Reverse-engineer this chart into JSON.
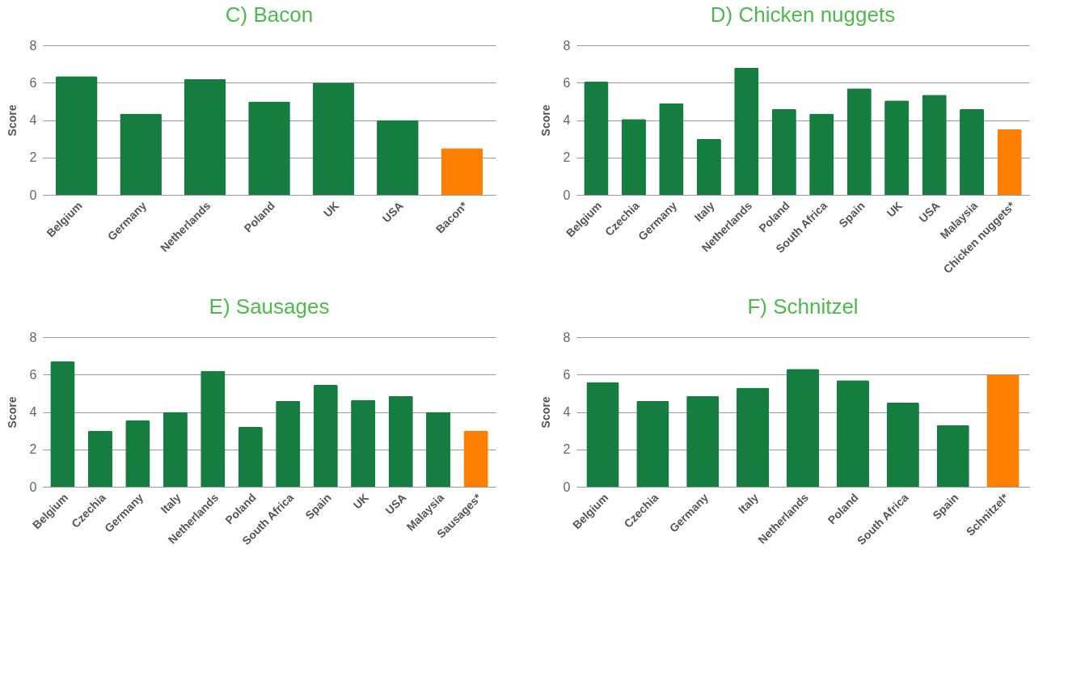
{
  "chart_data": [
    {
      "type": "bar",
      "title": "C) Bacon",
      "ylabel": "Score",
      "categories": [
        "Belgium",
        "Germany",
        "Netherlands",
        "Poland",
        "UK",
        "USA",
        "Bacon*"
      ],
      "values": [
        6.35,
        4.35,
        6.2,
        5.0,
        6.0,
        4.0,
        2.5
      ],
      "colors": [
        "#167d40",
        "#167d40",
        "#167d40",
        "#167d40",
        "#167d40",
        "#167d40",
        "#ff8000"
      ],
      "ylim": [
        0,
        8
      ],
      "yticks": [
        0,
        2,
        4,
        6,
        8
      ],
      "grid": "y"
    },
    {
      "type": "bar",
      "title": "D) Chicken nuggets",
      "ylabel": "Score",
      "categories": [
        "Belgium",
        "Czechia",
        "Germany",
        "Italy",
        "Netherlands",
        "Poland",
        "South Africa",
        "Spain",
        "UK",
        "USA",
        "Malaysia",
        "Chicken nuggets*"
      ],
      "values": [
        6.05,
        4.05,
        4.9,
        3.0,
        6.8,
        4.6,
        4.35,
        5.7,
        5.05,
        5.35,
        4.6,
        3.5
      ],
      "colors": [
        "#167d40",
        "#167d40",
        "#167d40",
        "#167d40",
        "#167d40",
        "#167d40",
        "#167d40",
        "#167d40",
        "#167d40",
        "#167d40",
        "#167d40",
        "#ff8000"
      ],
      "ylim": [
        0,
        8
      ],
      "yticks": [
        0,
        2,
        4,
        6,
        8
      ],
      "grid": "y"
    },
    {
      "type": "bar",
      "title": "E) Sausages",
      "ylabel": "Score",
      "categories": [
        "Belgium",
        "Czechia",
        "Germany",
        "Italy",
        "Netherlands",
        "Poland",
        "South Africa",
        "Spain",
        "UK",
        "USA",
        "Malaysia",
        "Sausages*"
      ],
      "values": [
        6.7,
        3.0,
        3.55,
        4.0,
        6.2,
        3.2,
        4.6,
        5.45,
        4.65,
        4.85,
        4.0,
        3.0
      ],
      "colors": [
        "#167d40",
        "#167d40",
        "#167d40",
        "#167d40",
        "#167d40",
        "#167d40",
        "#167d40",
        "#167d40",
        "#167d40",
        "#167d40",
        "#167d40",
        "#ff8000"
      ],
      "ylim": [
        0,
        8
      ],
      "yticks": [
        0,
        2,
        4,
        6,
        8
      ],
      "grid": "y"
    },
    {
      "type": "bar",
      "title": "F) Schnitzel",
      "ylabel": "Score",
      "categories": [
        "Belgium",
        "Czechia",
        "Germany",
        "Italy",
        "Netherlands",
        "Poland",
        "South Africa",
        "Spain",
        "Schnitzel*"
      ],
      "values": [
        5.6,
        4.6,
        4.85,
        5.3,
        6.3,
        5.7,
        4.5,
        3.3,
        6.0
      ],
      "colors": [
        "#167d40",
        "#167d40",
        "#167d40",
        "#167d40",
        "#167d40",
        "#167d40",
        "#167d40",
        "#167d40",
        "#ff8000"
      ],
      "ylim": [
        0,
        8
      ],
      "yticks": [
        0,
        2,
        4,
        6,
        8
      ],
      "grid": "y"
    }
  ]
}
